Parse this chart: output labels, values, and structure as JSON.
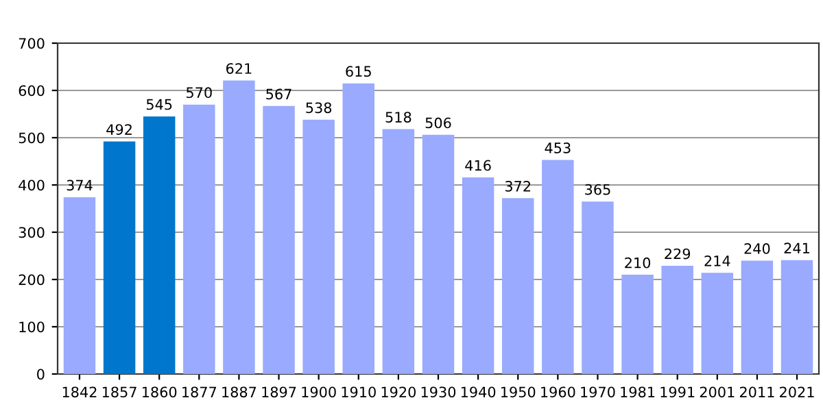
{
  "chart_data": {
    "type": "bar",
    "categories": [
      "1842",
      "1857",
      "1860",
      "1877",
      "1887",
      "1897",
      "1900",
      "1910",
      "1920",
      "1930",
      "1940",
      "1950",
      "1960",
      "1970",
      "1981",
      "1991",
      "2001",
      "2011",
      "2021"
    ],
    "values": [
      374,
      492,
      545,
      570,
      621,
      567,
      538,
      615,
      518,
      506,
      416,
      372,
      453,
      365,
      210,
      229,
      214,
      240,
      241
    ],
    "colors": [
      "#99aaff",
      "#0077cc",
      "#0077cc",
      "#99aaff",
      "#99aaff",
      "#99aaff",
      "#99aaff",
      "#99aaff",
      "#99aaff",
      "#99aaff",
      "#99aaff",
      "#99aaff",
      "#99aaff",
      "#99aaff",
      "#99aaff",
      "#99aaff",
      "#99aaff",
      "#99aaff",
      "#99aaff"
    ],
    "ylim": [
      0,
      700
    ],
    "yticks": [
      0,
      100,
      200,
      300,
      400,
      500,
      600,
      700
    ],
    "grid": "y",
    "data_labels": true
  }
}
